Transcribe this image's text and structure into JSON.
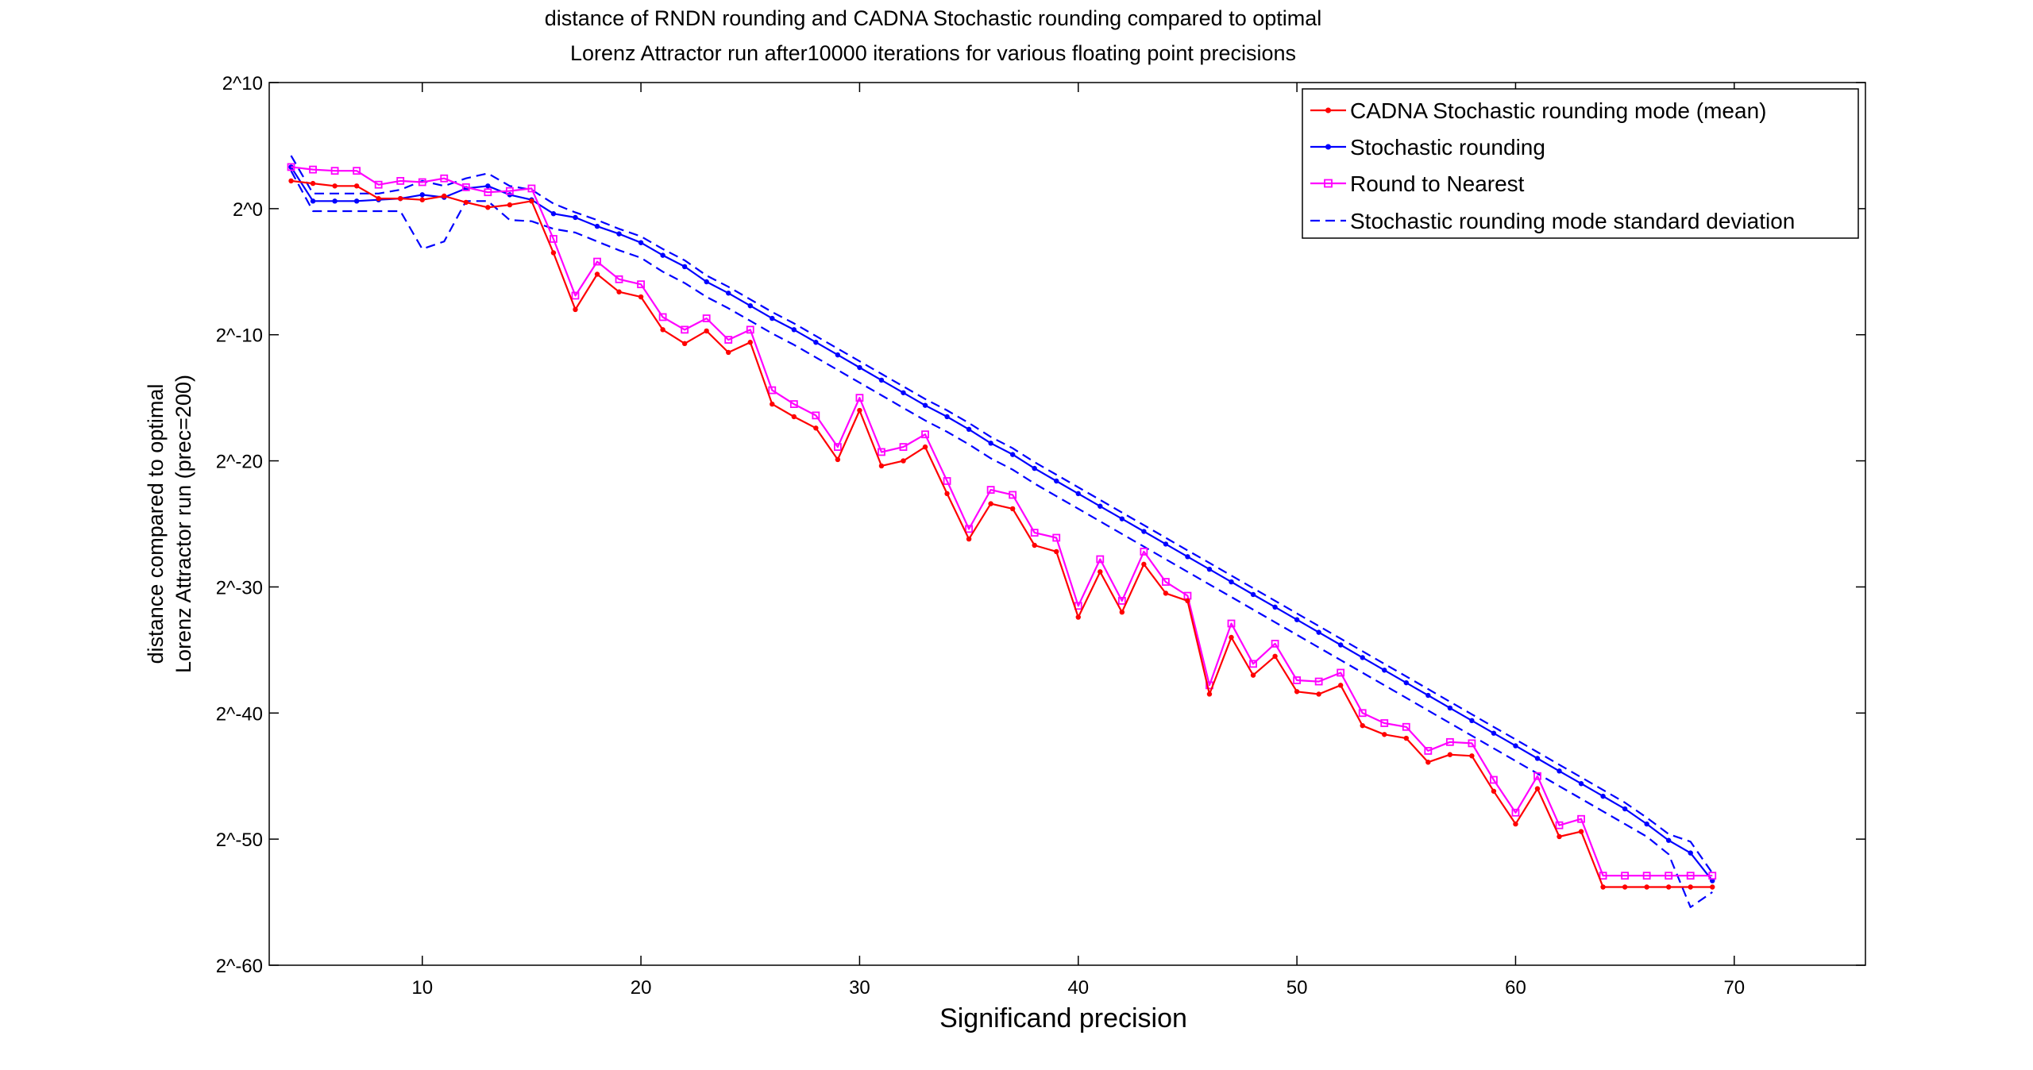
{
  "chart_data": {
    "type": "line",
    "title": "distance of RNDN rounding and CADNA Stochastic rounding compared to optimal",
    "subtitle": "Lorenz Attractor run after10000 iterations for various floating point precisions",
    "xlabel": "Significand precision",
    "ylabel_lines": [
      "distance compared to optimal",
      "Lorenz Attractor run (prec=200)"
    ],
    "xlim": [
      3,
      76
    ],
    "ylim": [
      -60,
      10
    ],
    "x_ticks": [
      10,
      20,
      30,
      40,
      50,
      60,
      70
    ],
    "x_tick_labels": [
      "10",
      "20",
      "30",
      "40",
      "50",
      "60",
      "70"
    ],
    "y_ticks": [
      10,
      0,
      -10,
      -20,
      -30,
      -40,
      -50,
      -60
    ],
    "y_tick_labels": [
      "2^10",
      "2^0",
      "2^-10",
      "2^-20",
      "2^-30",
      "2^-40",
      "2^-50",
      "2^-60"
    ],
    "y_scale": "log2 (exponent values plotted)",
    "grid": false,
    "legend_position": "top-right",
    "x": [
      4,
      5,
      6,
      7,
      8,
      9,
      10,
      11,
      12,
      13,
      14,
      15,
      16,
      17,
      18,
      19,
      20,
      21,
      22,
      23,
      24,
      25,
      26,
      27,
      28,
      29,
      30,
      31,
      32,
      33,
      34,
      35,
      36,
      37,
      38,
      39,
      40,
      41,
      42,
      43,
      44,
      45,
      46,
      47,
      48,
      49,
      50,
      51,
      52,
      53,
      54,
      55,
      56,
      57,
      58,
      59,
      60,
      61,
      62,
      63,
      64,
      65,
      66,
      67,
      68,
      69
    ],
    "series": [
      {
        "name": "CADNA Stochastic rounding mode (mean)",
        "color": "#ff0000",
        "marker": "dot",
        "dashed": false,
        "values": [
          2.2,
          2.0,
          1.8,
          1.8,
          0.8,
          0.8,
          0.7,
          1.0,
          0.5,
          0.1,
          0.3,
          0.6,
          -3.5,
          -8.0,
          -5.2,
          -6.6,
          -7.0,
          -9.6,
          -10.7,
          -9.7,
          -11.4,
          -10.6,
          -15.5,
          -16.5,
          -17.4,
          -19.9,
          -16.0,
          -20.4,
          -20.0,
          -18.9,
          -22.6,
          -26.2,
          -23.4,
          -23.8,
          -26.7,
          -27.2,
          -32.4,
          -28.8,
          -32.0,
          -28.2,
          -30.5,
          -31.1,
          -38.5,
          -34.0,
          -37.0,
          -35.5,
          -38.3,
          -38.5,
          -37.8,
          -41.0,
          -41.7,
          -42.0,
          -43.9,
          -43.3,
          -43.4,
          -46.2,
          -48.8,
          -46.0,
          -49.8,
          -49.4,
          -53.8,
          -53.8,
          -53.8,
          -53.8,
          -53.8,
          -53.8
        ]
      },
      {
        "name": "Stochastic rounding",
        "color": "#0000ff",
        "marker": "dot",
        "dashed": false,
        "values": [
          3.3,
          0.6,
          0.6,
          0.6,
          0.7,
          0.8,
          1.1,
          0.9,
          1.6,
          1.8,
          1.1,
          0.7,
          -0.4,
          -0.7,
          -1.4,
          -2.0,
          -2.7,
          -3.7,
          -4.6,
          -5.8,
          -6.7,
          -7.7,
          -8.7,
          -9.6,
          -10.6,
          -11.6,
          -12.6,
          -13.6,
          -14.6,
          -15.6,
          -16.5,
          -17.5,
          -18.6,
          -19.5,
          -20.6,
          -21.6,
          -22.6,
          -23.6,
          -24.6,
          -25.6,
          -26.6,
          -27.6,
          -28.6,
          -29.6,
          -30.6,
          -31.6,
          -32.6,
          -33.6,
          -34.6,
          -35.6,
          -36.6,
          -37.6,
          -38.6,
          -39.6,
          -40.6,
          -41.6,
          -42.6,
          -43.6,
          -44.6,
          -45.6,
          -46.6,
          -47.6,
          -48.8,
          -50.1,
          -51.1,
          -53.3
        ]
      },
      {
        "name": "Round to Nearest",
        "color": "#ff00ff",
        "marker": "square",
        "dashed": false,
        "values": [
          3.3,
          3.1,
          3.0,
          3.0,
          1.9,
          2.2,
          2.1,
          2.4,
          1.7,
          1.3,
          1.4,
          1.6,
          -2.4,
          -6.9,
          -4.2,
          -5.6,
          -6.0,
          -8.6,
          -9.6,
          -8.7,
          -10.4,
          -9.6,
          -14.4,
          -15.5,
          -16.4,
          -18.9,
          -15.0,
          -19.3,
          -18.9,
          -17.9,
          -21.6,
          -25.4,
          -22.3,
          -22.7,
          -25.7,
          -26.1,
          -31.5,
          -27.8,
          -31.1,
          -27.2,
          -29.6,
          -30.7,
          -37.8,
          -32.9,
          -36.1,
          -34.5,
          -37.4,
          -37.5,
          -36.8,
          -40.0,
          -40.8,
          -41.1,
          -43.0,
          -42.3,
          -42.4,
          -45.3,
          -47.9,
          -45.0,
          -48.9,
          -48.4,
          -52.9,
          -52.9,
          -52.9,
          -52.9,
          -52.9,
          -52.9
        ]
      },
      {
        "name": "Stochastic rounding mode standard deviation",
        "color": "#0000ff",
        "marker": "none",
        "dashed": true,
        "values": [
          4.2,
          1.2,
          1.2,
          1.2,
          1.2,
          1.5,
          2.2,
          1.8,
          2.4,
          2.8,
          1.8,
          1.5,
          0.4,
          -0.3,
          -0.9,
          -1.6,
          -2.2,
          -3.2,
          -4.1,
          -5.3,
          -6.2,
          -7.2,
          -8.2,
          -9.1,
          -10.1,
          -11.1,
          -12.1,
          -13.1,
          -14.1,
          -15.1,
          -16.0,
          -17.0,
          -18.1,
          -19.0,
          -20.1,
          -21.1,
          -22.1,
          -23.1,
          -24.1,
          -25.1,
          -26.1,
          -27.1,
          -28.1,
          -29.1,
          -30.1,
          -31.1,
          -32.1,
          -33.1,
          -34.1,
          -35.1,
          -36.1,
          -37.1,
          -38.1,
          -39.1,
          -40.1,
          -41.1,
          -42.1,
          -43.1,
          -44.1,
          -45.1,
          -46.1,
          -47.1,
          -48.3,
          -49.6,
          -50.2,
          -52.7
        ]
      },
      {
        "name": "",
        "color": "#0000ff",
        "marker": "none",
        "dashed": true,
        "values": [
          3.0,
          -0.2,
          -0.2,
          -0.2,
          -0.2,
          -0.2,
          -3.2,
          -2.6,
          0.6,
          0.6,
          -0.9,
          -1.0,
          -1.6,
          -1.9,
          -2.6,
          -3.3,
          -3.9,
          -5.0,
          -5.9,
          -7.0,
          -7.9,
          -8.9,
          -9.9,
          -10.8,
          -11.8,
          -12.8,
          -13.8,
          -14.8,
          -15.8,
          -16.8,
          -17.7,
          -18.7,
          -19.8,
          -20.7,
          -21.8,
          -22.8,
          -23.8,
          -24.8,
          -25.8,
          -26.8,
          -27.8,
          -28.8,
          -29.8,
          -30.8,
          -31.8,
          -32.8,
          -33.8,
          -34.8,
          -35.8,
          -36.8,
          -37.8,
          -38.8,
          -39.8,
          -40.8,
          -41.8,
          -42.8,
          -43.8,
          -44.8,
          -45.8,
          -46.8,
          -47.8,
          -48.8,
          -49.8,
          -51.2,
          -55.4,
          -54.2
        ]
      }
    ]
  }
}
